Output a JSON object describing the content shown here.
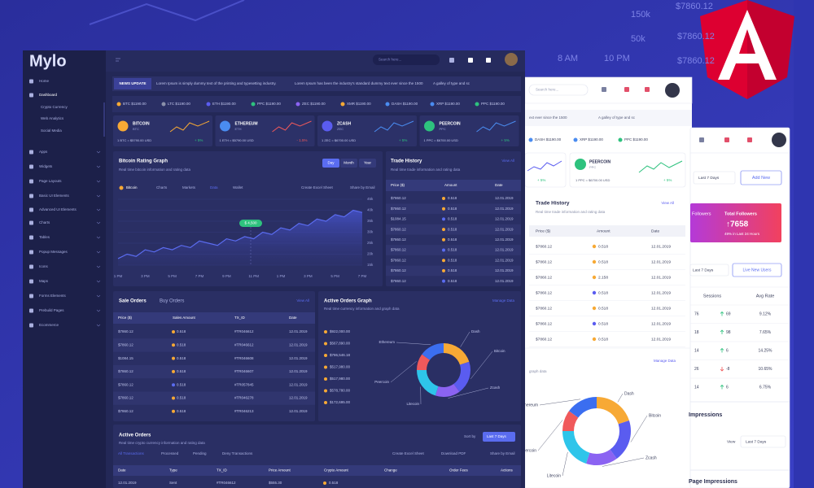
{
  "background": {
    "labels": [
      "$7860.12",
      "150k",
      "50k",
      "$7860.12",
      "$7860.12",
      "8 AM",
      "10 PM"
    ]
  },
  "main": {
    "logo": "Mylo",
    "search": "Search here...",
    "sidebar": [
      "Home",
      "Dashboard",
      "Crypto Currency",
      "Web Analytics",
      "Social Media",
      "Apps",
      "Widgets",
      "Page Layouts",
      "Basic UI Elements",
      "Advanced UI Elements",
      "Charts",
      "Tables",
      "Popup Messages",
      "Icons",
      "Maps",
      "Forms Elements",
      "Prebuild Pages",
      "Ecommerce"
    ],
    "news": {
      "badge": "NEWS UPDATE",
      "items": [
        "Lorem Ipsum is simply dummy text of the printing and typesetting industry.",
        "Lorem Ipsum has been the industry's standard dummy text ever since the 1500",
        "A galley of type and sc"
      ]
    },
    "tickers": [
      "BTC $1190.00",
      "LTC $1190.00",
      "ETH $1190.00",
      "PPC $1190.00",
      "ZEC $1190.00",
      "XMR $1190.00",
      "DASH $1190.00",
      "XRP $1190.00",
      "PPC $1190.00"
    ],
    "coins": [
      {
        "name": "BITCOIN",
        "symbol": "BTC",
        "rate": "1 BTC = $5790.00 USD",
        "change": "+ 5%"
      },
      {
        "name": "ETHEREUM",
        "symbol": "ETH",
        "rate": "1 ETH = $5790.00 USD",
        "change": "- 1.5%"
      },
      {
        "name": "ZCASH",
        "symbol": "ZEC",
        "rate": "1 ZEC = $6700.00 USD",
        "change": "+ 5%"
      },
      {
        "name": "PEERCOIN",
        "symbol": "PPC",
        "rate": "1 PPC = $6700.00 USD",
        "change": "+ 5%"
      }
    ],
    "rating_graph": {
      "type": "line",
      "title": "Bitcoin Rating Graph",
      "subtitle": "Real time bitcoin information and rating data",
      "tabs": [
        "Day",
        "Month",
        "Year"
      ],
      "menu": [
        "Bitcoin",
        "Charts",
        "Markets",
        "Data",
        "Wallet"
      ],
      "actions": [
        "Create Excel Sheet",
        "Share by Email"
      ],
      "annotation": "$ 4,500",
      "categories": [
        "1 PM",
        null,
        null,
        "3 PM",
        null,
        null,
        "5 PM",
        null,
        null,
        "7 PM",
        null,
        null,
        "9 PM",
        null,
        null,
        "11 PM",
        null,
        null,
        "1 PM",
        null,
        null,
        "3 PM",
        null,
        null,
        "5 PM",
        null,
        null,
        "7 PM"
      ],
      "values": [
        18000,
        20000,
        19000,
        22000,
        21000,
        23000,
        22000,
        24000,
        23000,
        26000,
        25000,
        24000,
        27000,
        26000,
        28000,
        27000,
        30000,
        29000,
        32000,
        31000,
        34000,
        33000,
        36000,
        35000,
        38000,
        37000,
        40000,
        39000
      ],
      "color": "#5b6cf0",
      "ylim": [
        15000,
        45000
      ],
      "yticks": [
        {
          "value": 45000,
          "label": "45k"
        },
        {
          "value": 40000,
          "label": "40k"
        },
        {
          "value": 35000,
          "label": "35k"
        },
        {
          "value": 30000,
          "label": "30k"
        },
        {
          "value": 25000,
          "label": "25k"
        },
        {
          "value": 20000,
          "label": "20k"
        },
        {
          "value": 15000,
          "label": "15k"
        }
      ],
      "grid": true
    },
    "trade_history": {
      "title": "Trade History",
      "subtitle": "Real time trade information and rating data",
      "link": "View All",
      "headers": [
        "Price ($)",
        "Amount",
        "Date"
      ],
      "rows": [
        [
          "$7860.12",
          "0.518",
          "12.01.2019"
        ],
        [
          "$7860.12",
          "0.518",
          "12.01.2019"
        ],
        [
          "$1084.15",
          "0.518",
          "12.01.2019"
        ],
        [
          "$7860.12",
          "0.518",
          "12.01.2019"
        ],
        [
          "$7860.12",
          "0.518",
          "12.01.2019"
        ],
        [
          "$7860.12",
          "0.518",
          "12.01.2019"
        ],
        [
          "$7860.12",
          "0.518",
          "12.01.2019"
        ],
        [
          "$7860.12",
          "0.518",
          "12.01.2019"
        ],
        [
          "$7860.12",
          "0.518",
          "12.01.2019"
        ]
      ]
    },
    "sale_orders": {
      "tabs": [
        "Sale Orders",
        "Buy Orders"
      ],
      "link": "View All",
      "headers": [
        "Price ($)",
        "Sales Amount",
        "TX_ID",
        "Date"
      ],
      "rows": [
        [
          "$7860.12",
          "0.518",
          "#TR046612",
          "12.01.2019"
        ],
        [
          "$7860.12",
          "0.518",
          "#TR046612",
          "12.01.2019"
        ],
        [
          "$1084.15",
          "0.518",
          "#TR046608",
          "12.01.2019"
        ],
        [
          "$7860.12",
          "0.518",
          "#TR046607",
          "12.01.2019"
        ],
        [
          "$7860.12",
          "0.518",
          "#TR057845",
          "12.01.2019"
        ],
        [
          "$7860.12",
          "0.518",
          "#TR046278",
          "12.01.2019"
        ],
        [
          "$7860.12",
          "0.518",
          "#TR046213",
          "12.01.2019"
        ]
      ]
    },
    "active_graph": {
      "type": "pie",
      "donut": true,
      "title": "Active Orders Graph",
      "subtitle": "Real time currency information and graph data",
      "link": "Manage Data",
      "amounts": [
        "$922,000.00",
        "$567,890.00",
        "$786,546.18",
        "$517,980.00",
        "$517,980.00",
        "$578,780.00",
        "$172,695.00"
      ],
      "categories": [
        "Dash",
        "Bitcoin",
        "Zcash",
        "Litecoin",
        "Peercoin",
        "Ethereum"
      ],
      "values": [
        20,
        20,
        15,
        20,
        10,
        15
      ],
      "colors": [
        "#f7a935",
        "#5a5cf0",
        "#8b63f2",
        "#2ec5ea",
        "#f0595b",
        "#3b6ef0"
      ]
    },
    "active_orders": {
      "title": "Active Orders",
      "subtitle": "Real time crypto currency information and rating data",
      "sort_label": "Sort by",
      "sort_value": "Last 7 Days",
      "tabs": [
        "All Transactions",
        "Processed",
        "Pending",
        "Deny Transactions"
      ],
      "actions": [
        "Create Excel Sheet",
        "Download PDF",
        "Share by Email"
      ],
      "headers": [
        "Date",
        "Type",
        "TX_ID",
        "Price Amount",
        "Crypto Amount",
        "Change",
        "Order Fees",
        "Actions"
      ],
      "row": [
        "12.01.2019",
        "Sent",
        "#TR046612",
        "$555.30",
        "0.518"
      ]
    }
  },
  "panel_a": {
    "search": "Search here...",
    "news": [
      "ext ever since the 1500",
      "A galley of type and sc"
    ],
    "tickers": [
      "DASH $1190.00",
      "XRP $1190.00",
      "PPC $1190.00"
    ],
    "partial_change": "+ 5%",
    "coin": {
      "name": "PEERCOIN",
      "symbol": "PPC",
      "rate": "1 PPC = $6700.00 USD",
      "change": "+ 5%"
    },
    "trade": {
      "title": "Trade History",
      "subtitle": "Real time trade information and rating data",
      "link": "View All",
      "headers": [
        "Price ($)",
        "Amount",
        "Date"
      ],
      "rows": [
        [
          "$7860.12",
          "0.518",
          "12.01.2019"
        ],
        [
          "$7860.12",
          "0.518",
          "12.01.2019"
        ],
        [
          "$7860.12",
          "2.158",
          "12.01.2019"
        ],
        [
          "$7860.12",
          "0.518",
          "12.01.2019"
        ],
        [
          "$7860.12",
          "0.518",
          "12.01.2019"
        ],
        [
          "$7860.12",
          "0.518",
          "12.01.2019"
        ],
        [
          "$7860.12",
          "0.518",
          "12.01.2019"
        ]
      ]
    },
    "donut": {
      "type": "pie",
      "donut": true,
      "link": "Manage Data",
      "subtitle": "graph data",
      "categories": [
        "Dash",
        "Bitcoin",
        "Zcash",
        "Litecoin",
        "Peercoin",
        "Ethereum"
      ],
      "values": [
        20,
        20,
        15,
        20,
        10,
        15
      ],
      "colors": [
        "#f7a935",
        "#5a5cf0",
        "#8b63f2",
        "#2ec5ea",
        "#f0595b",
        "#3b6ef0"
      ]
    }
  },
  "panel_b": {
    "range": "Last 7 Days",
    "add": "Add New",
    "followers_partial": "Followers",
    "followers": {
      "title": "Total Followers",
      "value": "↑7658",
      "note": "49% in Last 24 Hours"
    },
    "range2": "Last 7 Days",
    "live": "Live New Users",
    "headers": [
      "Sessions",
      "Avg Rate"
    ],
    "rows": [
      [
        "76",
        "69",
        "9.12%"
      ],
      [
        "18",
        "98",
        "7.65%"
      ],
      [
        "14",
        "6",
        "14.25%"
      ],
      [
        "26",
        "-8",
        "10.65%"
      ],
      [
        "14",
        "6",
        "6.75%"
      ]
    ],
    "impressions": "Impressions",
    "view": "View",
    "range3": "Last 7 Days",
    "page_impressions": "Page Impressions"
  }
}
